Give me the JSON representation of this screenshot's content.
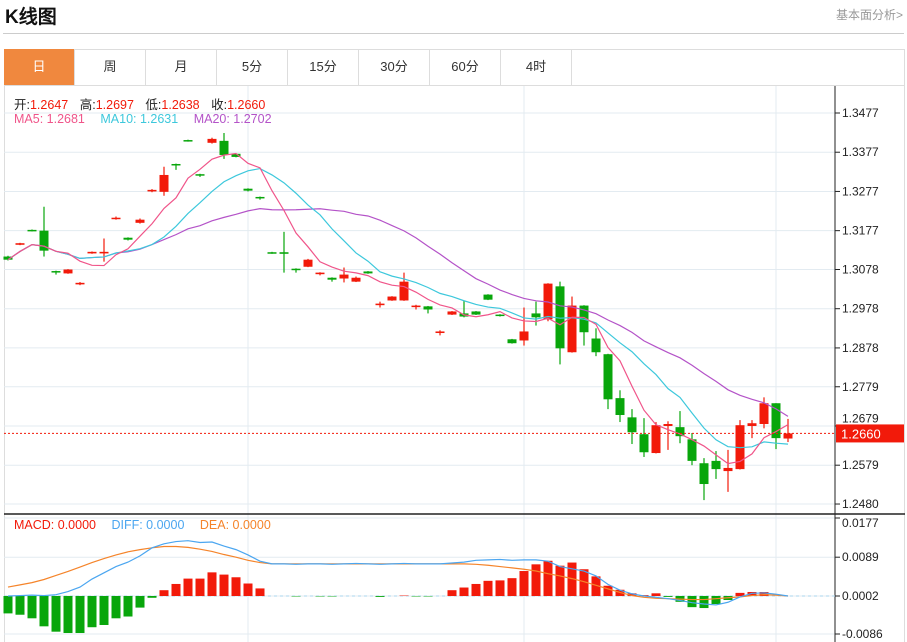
{
  "header": {
    "title": "K线图",
    "more_link": "基本面分析>"
  },
  "tabs": [
    {
      "label": "日",
      "active": true
    },
    {
      "label": "周"
    },
    {
      "label": "月"
    },
    {
      "label": "5分"
    },
    {
      "label": "15分"
    },
    {
      "label": "30分"
    },
    {
      "label": "60分"
    },
    {
      "label": "4时"
    }
  ],
  "ohlc_legend": {
    "open_label": "开:",
    "open": "1.2647",
    "high_label": "高:",
    "high": "1.2697",
    "low_label": "低:",
    "low": "1.2638",
    "close_label": "收:",
    "close": "1.2660"
  },
  "ma_legend": {
    "ma5": "MA5: 1.2681",
    "ma10": "MA10: 1.2631",
    "ma20": "MA20: 1.2702"
  },
  "macd_legend": {
    "macd": "MACD: 0.0000",
    "diff": "DIFF: 0.0000",
    "dea": "DEA: 0.0000"
  },
  "current_price": "1.2660",
  "colors": {
    "up": "#f21a0a",
    "down": "#08a60b",
    "ma5": "#f0558a",
    "ma10": "#3dc8dc",
    "ma20": "#b453c8",
    "diff": "#4ba6f0",
    "dea": "#f5842a",
    "tab_active": "#f0883e"
  },
  "chart_data": {
    "type": "candlestick",
    "price_axis": {
      "ticks": [
        "1.3477",
        "1.3377",
        "1.3277",
        "1.3177",
        "1.3078",
        "1.2978",
        "1.2878",
        "1.2779",
        "1.2679",
        "1.2579",
        "1.2480"
      ],
      "range": [
        1.248,
        1.3477
      ]
    },
    "macd_axis": {
      "ticks": [
        "0.0177",
        "0.0089",
        "0.0002",
        "-0.0086"
      ]
    },
    "ohlc": [
      [
        1.3111,
        1.3113,
        1.3101,
        1.3103
      ],
      [
        1.3141,
        1.3146,
        1.314,
        1.3145
      ],
      [
        1.3179,
        1.318,
        1.3175,
        1.3176
      ],
      [
        1.3177,
        1.3238,
        1.3111,
        1.3126
      ],
      [
        1.3074,
        1.3075,
        1.3065,
        1.3072
      ],
      [
        1.3068,
        1.3079,
        1.3067,
        1.3078
      ],
      [
        1.304,
        1.3046,
        1.3038,
        1.3044
      ],
      [
        1.3119,
        1.3124,
        1.3118,
        1.3123
      ],
      [
        1.3119,
        1.3157,
        1.3098,
        1.3123
      ],
      [
        1.3207,
        1.3213,
        1.3205,
        1.321
      ],
      [
        1.3159,
        1.316,
        1.3152,
        1.3154
      ],
      [
        1.3197,
        1.3208,
        1.3195,
        1.3205
      ],
      [
        1.3277,
        1.3283,
        1.3275,
        1.3281
      ],
      [
        1.3276,
        1.334,
        1.3266,
        1.3319
      ],
      [
        1.3347,
        1.3348,
        1.3332,
        1.3344
      ],
      [
        1.3408,
        1.3409,
        1.3404,
        1.3405
      ],
      [
        1.3321,
        1.3322,
        1.3314,
        1.3318
      ],
      [
        1.3401,
        1.3414,
        1.3399,
        1.3411
      ],
      [
        1.3406,
        1.3426,
        1.336,
        1.337
      ],
      [
        1.3373,
        1.3374,
        1.3364,
        1.3365
      ],
      [
        1.3284,
        1.3285,
        1.3277,
        1.3279
      ],
      [
        1.3263,
        1.3264,
        1.3256,
        1.3261
      ],
      [
        1.3122,
        1.3123,
        1.3118,
        1.3119
      ],
      [
        1.3122,
        1.3174,
        1.307,
        1.3118
      ],
      [
        1.308,
        1.3081,
        1.307,
        1.3078
      ],
      [
        1.3085,
        1.3105,
        1.3084,
        1.3103
      ],
      [
        1.3066,
        1.3071,
        1.3063,
        1.307
      ],
      [
        1.3057,
        1.3058,
        1.3047,
        1.3052
      ],
      [
        1.3055,
        1.3083,
        1.3045,
        1.3065
      ],
      [
        1.3047,
        1.306,
        1.3046,
        1.3057
      ],
      [
        1.3073,
        1.3074,
        1.3067,
        1.3068
      ],
      [
        1.2987,
        1.2996,
        1.2981,
        1.2991
      ],
      [
        1.2999,
        1.301,
        1.2998,
        1.3009
      ],
      [
        1.2999,
        1.307,
        1.2998,
        1.3047
      ],
      [
        1.2982,
        1.2988,
        1.2976,
        1.2986
      ],
      [
        1.2984,
        1.2985,
        1.2966,
        1.2976
      ],
      [
        1.2916,
        1.2923,
        1.291,
        1.292
      ],
      [
        1.2963,
        1.2972,
        1.2962,
        1.2971
      ],
      [
        1.2966,
        1.2999,
        1.2956,
        1.2958
      ],
      [
        1.2971,
        1.2972,
        1.2962,
        1.2963
      ],
      [
        1.3014,
        1.3015,
        1.3,
        1.3001
      ],
      [
        1.2963,
        1.2964,
        1.2958,
        1.296
      ],
      [
        1.29,
        1.2901,
        1.2889,
        1.289
      ],
      [
        1.2897,
        1.2981,
        1.2884,
        1.292
      ],
      [
        1.2966,
        1.2996,
        1.2935,
        1.2956
      ],
      [
        1.2951,
        1.3043,
        1.2946,
        1.3042
      ],
      [
        1.3035,
        1.3047,
        1.2836,
        1.2877
      ],
      [
        1.2867,
        1.3009,
        1.2866,
        1.2986
      ],
      [
        1.2986,
        1.2987,
        1.2884,
        1.2918
      ],
      [
        1.2902,
        1.2928,
        1.2857,
        1.2867
      ],
      [
        1.2862,
        1.2863,
        1.2722,
        1.2747
      ],
      [
        1.275,
        1.277,
        1.2689,
        1.2707
      ],
      [
        1.2701,
        1.2722,
        1.2633,
        1.2663
      ],
      [
        1.2658,
        1.2699,
        1.26,
        1.2612
      ],
      [
        1.261,
        1.2689,
        1.2609,
        1.2681
      ],
      [
        1.2679,
        1.2691,
        1.2618,
        1.2684
      ],
      [
        1.2676,
        1.2717,
        1.2635,
        1.2653
      ],
      [
        1.2645,
        1.2661,
        1.2579,
        1.259
      ],
      [
        1.2584,
        1.2597,
        1.249,
        1.2531
      ],
      [
        1.259,
        1.2615,
        1.2544,
        1.2569
      ],
      [
        1.2564,
        1.2618,
        1.2511,
        1.2572
      ],
      [
        1.2569,
        1.2694,
        1.2568,
        1.2681
      ],
      [
        1.2679,
        1.2694,
        1.2648,
        1.2686
      ],
      [
        1.2684,
        1.2752,
        1.2673,
        1.2737
      ],
      [
        1.2737,
        1.2737,
        1.262,
        1.2648
      ],
      [
        1.2647,
        1.2697,
        1.2638,
        1.266
      ]
    ],
    "macd_hist": [
      -0.0039,
      -0.0042,
      -0.005,
      -0.0068,
      -0.008,
      -0.0083,
      -0.0083,
      -0.007,
      -0.0065,
      -0.005,
      -0.0046,
      -0.0026,
      -0.0004,
      0.0013,
      0.0027,
      0.0039,
      0.0039,
      0.0053,
      0.0048,
      0.0042,
      0.0028,
      0.0017,
      0.0,
      0.0,
      -0.0001,
      0.0,
      -0.0001,
      -0.0001,
      0.0,
      0.0,
      0.0,
      -0.0002,
      0.0,
      0.0001,
      -0.0001,
      -0.0001,
      0.0,
      0.0013,
      0.0019,
      0.0027,
      0.0034,
      0.0035,
      0.004,
      0.0056,
      0.0071,
      0.0079,
      0.0068,
      0.0075,
      0.006,
      0.0044,
      0.0023,
      0.0014,
      0.0006,
      0.0002,
      0.0006,
      -0.0002,
      -0.0013,
      -0.0025,
      -0.0027,
      -0.0018,
      -0.0009,
      0.0007,
      0.0009,
      0.0009,
      0.0,
      0.0
    ],
    "diff": [
      0.0,
      0.0001,
      0.0002,
      0.0001,
      0.0003,
      0.001,
      0.002,
      0.0038,
      0.0052,
      0.0066,
      0.0076,
      0.009,
      0.0108,
      0.0117,
      0.0122,
      0.0124,
      0.012,
      0.0121,
      0.0112,
      0.0104,
      0.0092,
      0.0078,
      0.0072,
      0.0072,
      0.0071,
      0.0072,
      0.0072,
      0.0071,
      0.0072,
      0.0073,
      0.0072,
      0.0071,
      0.0072,
      0.0073,
      0.0072,
      0.0072,
      0.0072,
      0.0074,
      0.0076,
      0.008,
      0.0081,
      0.0082,
      0.008,
      0.0081,
      0.0081,
      0.0078,
      0.0066,
      0.0061,
      0.0056,
      0.0045,
      0.0026,
      0.0013,
      0.0005,
      0.0,
      -0.0003,
      -0.0006,
      -0.001,
      -0.0015,
      -0.0018,
      -0.002,
      -0.0014,
      -0.0002,
      0.0006,
      0.0007,
      0.0004,
      0.0
    ],
    "dea": [
      0.002,
      0.0025,
      0.003,
      0.0037,
      0.0046,
      0.0055,
      0.0065,
      0.0075,
      0.0084,
      0.0092,
      0.0099,
      0.0104,
      0.0108,
      0.0111,
      0.0111,
      0.0109,
      0.0105,
      0.01,
      0.0093,
      0.0087,
      0.008,
      0.0075,
      0.0072,
      0.0072,
      0.0072,
      0.0072,
      0.0072,
      0.0072,
      0.0072,
      0.0072,
      0.0072,
      0.0072,
      0.0072,
      0.0072,
      0.0072,
      0.0072,
      0.0072,
      0.0072,
      0.0072,
      0.0071,
      0.0069,
      0.0066,
      0.0063,
      0.006,
      0.0056,
      0.005,
      0.0045,
      0.0039,
      0.0032,
      0.0024,
      0.0016,
      0.0008,
      0.0001,
      -0.0003,
      -0.0005,
      -0.0006,
      -0.0007,
      -0.0008,
      -0.0008,
      -0.0006,
      -0.0004,
      -0.0002,
      0.0001,
      0.0003,
      0.0002,
      0.0
    ]
  }
}
